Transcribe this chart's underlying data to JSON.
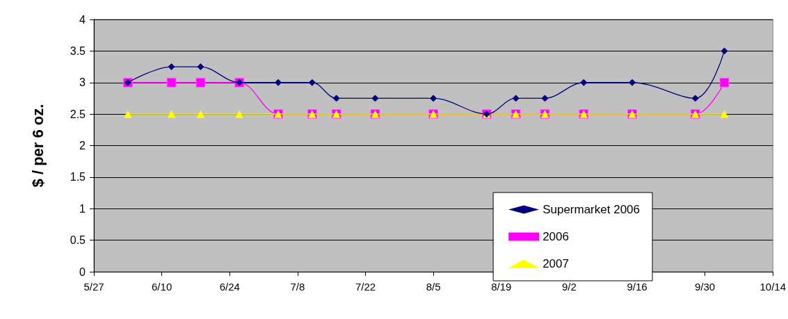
{
  "chart_data": {
    "type": "line",
    "ylabel": "$ / per 6 oz.",
    "x": [
      "--06-03",
      "--06-12",
      "--06-18",
      "--06-26",
      "--07-04",
      "--07-11",
      "--07-16",
      "--07-24",
      "--08-05",
      "--08-16",
      "--08-22",
      "--08-28",
      "--09-05",
      "--09-15",
      "--09-28",
      "--10-04"
    ],
    "series": [
      {
        "name": "Supermarket 2006",
        "color": "#000080",
        "marker": "diamond",
        "values": [
          3,
          3.25,
          3.25,
          3,
          3,
          3,
          2.75,
          2.75,
          2.75,
          2.5,
          2.75,
          2.75,
          3,
          3,
          2.75,
          3.5
        ]
      },
      {
        "name": "2006",
        "color": "#ff00ff",
        "marker": "square",
        "values": [
          3,
          3,
          3,
          3,
          2.5,
          2.5,
          2.5,
          2.5,
          2.5,
          2.5,
          2.5,
          2.5,
          2.5,
          2.5,
          2.5,
          3
        ]
      },
      {
        "name": "2007",
        "color": "#ffff00",
        "marker": "triangle",
        "values": [
          2.5,
          2.5,
          2.5,
          2.5,
          2.5,
          2.5,
          2.5,
          2.5,
          2.5,
          2.5,
          2.5,
          2.5,
          2.5,
          2.5,
          2.5,
          2.5
        ]
      }
    ],
    "xlim": [
      "--05-27",
      "--10-14"
    ],
    "xticks": [
      {
        "value": "--05-27",
        "label": "5/27"
      },
      {
        "value": "--06-10",
        "label": "6/10"
      },
      {
        "value": "--06-24",
        "label": "6/24"
      },
      {
        "value": "--07-08",
        "label": "7/8"
      },
      {
        "value": "--07-22",
        "label": "7/22"
      },
      {
        "value": "--08-05",
        "label": "8/5"
      },
      {
        "value": "--08-19",
        "label": "8/19"
      },
      {
        "value": "--09-02",
        "label": "9/2"
      },
      {
        "value": "--09-16",
        "label": "9/16"
      },
      {
        "value": "--09-30",
        "label": "9/30"
      },
      {
        "value": "--10-14",
        "label": "10/14"
      }
    ],
    "ylim": [
      0,
      4
    ],
    "yticks": [
      0,
      0.5,
      1,
      1.5,
      2,
      2.5,
      3,
      3.5,
      4
    ],
    "grid": "y",
    "legend": "bottom right",
    "line_style": "solid"
  }
}
